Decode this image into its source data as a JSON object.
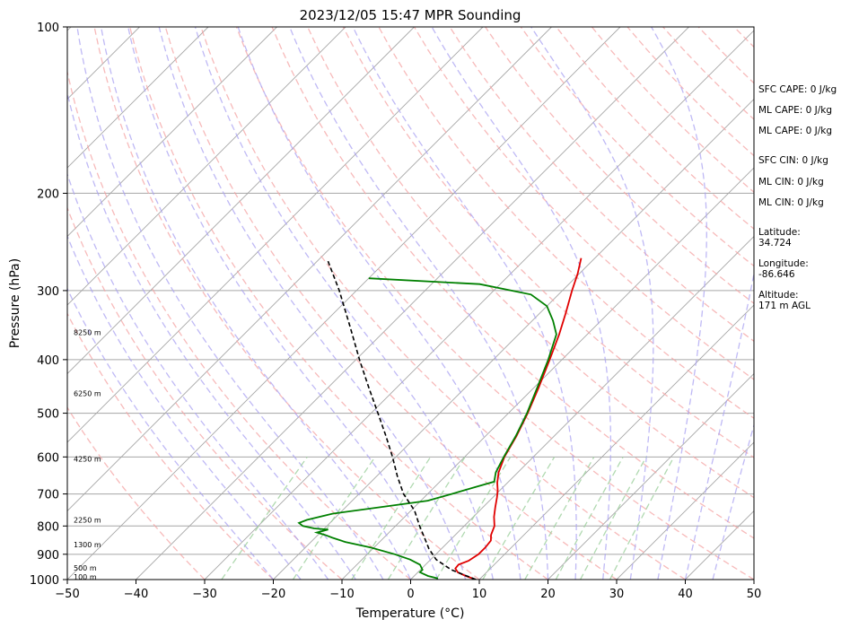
{
  "chart_data": {
    "type": "line",
    "title": "2023/12/05 15:47 MPR Sounding",
    "xlabel": "Temperature (°C)",
    "ylabel": "Pressure (hPa)",
    "xlim": [
      -50,
      50
    ],
    "ylim": [
      1000,
      100
    ],
    "y_scale": "log",
    "skew": "skew-T",
    "grid": true,
    "x_ticks": [
      -50,
      -40,
      -30,
      -20,
      -10,
      0,
      10,
      20,
      30,
      40,
      50
    ],
    "y_ticks": [
      1000,
      900,
      800,
      700,
      600,
      500,
      400,
      300,
      200,
      100
    ],
    "colors": {
      "temperature": "#e00000",
      "dewpoint": "#008000",
      "parcel": "#000000",
      "dry_adiabats": "#f4a3a3",
      "moist_adiabats": "#a9a1f2",
      "mixing_ratio": "#9ccf9c",
      "isotherms": "#a6a6a6"
    },
    "series": [
      {
        "name": "",
        "role": "temperature",
        "points": [
          {
            "p": 1000,
            "t": 9.5
          },
          {
            "p": 985,
            "t": 7.5
          },
          {
            "p": 970,
            "t": 5.8
          },
          {
            "p": 955,
            "t": 4.9
          },
          {
            "p": 940,
            "t": 4.8
          },
          {
            "p": 925,
            "t": 5.7
          },
          {
            "p": 900,
            "t": 6.2
          },
          {
            "p": 875,
            "t": 6.2
          },
          {
            "p": 850,
            "t": 6.0
          },
          {
            "p": 830,
            "t": 5.2
          },
          {
            "p": 800,
            "t": 4.4
          },
          {
            "p": 770,
            "t": 3.0
          },
          {
            "p": 740,
            "t": 1.8
          },
          {
            "p": 710,
            "t": 0.6
          },
          {
            "p": 690,
            "t": -0.3
          },
          {
            "p": 668,
            "t": -1.5
          },
          {
            "p": 640,
            "t": -2.8
          },
          {
            "p": 600,
            "t": -4.2
          },
          {
            "p": 550,
            "t": -5.5
          },
          {
            "p": 500,
            "t": -7.2
          },
          {
            "p": 450,
            "t": -9.3
          },
          {
            "p": 400,
            "t": -11.8
          },
          {
            "p": 360,
            "t": -14.1
          },
          {
            "p": 330,
            "t": -16.2
          },
          {
            "p": 300,
            "t": -18.6
          },
          {
            "p": 280,
            "t": -20.2
          },
          {
            "p": 262,
            "t": -22.0
          }
        ]
      },
      {
        "name": "",
        "role": "dewpoint",
        "points": [
          {
            "p": 995,
            "t": 3.8
          },
          {
            "p": 985,
            "t": 2.0
          },
          {
            "p": 970,
            "t": 0.3
          },
          {
            "p": 960,
            "t": 0.3
          },
          {
            "p": 940,
            "t": -0.8
          },
          {
            "p": 920,
            "t": -3.0
          },
          {
            "p": 900,
            "t": -6.0
          },
          {
            "p": 875,
            "t": -10.5
          },
          {
            "p": 855,
            "t": -15.0
          },
          {
            "p": 840,
            "t": -17.5
          },
          {
            "p": 830,
            "t": -19.0
          },
          {
            "p": 822,
            "t": -20.5
          },
          {
            "p": 812,
            "t": -19.3
          },
          {
            "p": 808,
            "t": -21.5
          },
          {
            "p": 800,
            "t": -23.5
          },
          {
            "p": 790,
            "t": -24.5
          },
          {
            "p": 780,
            "t": -23.8
          },
          {
            "p": 760,
            "t": -21.0
          },
          {
            "p": 740,
            "t": -15.0
          },
          {
            "p": 720,
            "t": -9.0
          },
          {
            "p": 700,
            "t": -6.5
          },
          {
            "p": 680,
            "t": -4.0
          },
          {
            "p": 665,
            "t": -2.1
          },
          {
            "p": 640,
            "t": -3.2
          },
          {
            "p": 600,
            "t": -4.3
          },
          {
            "p": 550,
            "t": -5.6
          },
          {
            "p": 500,
            "t": -7.3
          },
          {
            "p": 450,
            "t": -9.5
          },
          {
            "p": 400,
            "t": -12.0
          },
          {
            "p": 360,
            "t": -14.5
          },
          {
            "p": 340,
            "t": -17.0
          },
          {
            "p": 320,
            "t": -20.0
          },
          {
            "p": 305,
            "t": -24.0
          },
          {
            "p": 292,
            "t": -33.0
          },
          {
            "p": 285,
            "t": -50.0
          }
        ]
      },
      {
        "name": "",
        "role": "parcel",
        "points": [
          {
            "p": 1000,
            "t": 9.5
          },
          {
            "p": 960,
            "t": 4.5
          },
          {
            "p": 920,
            "t": 0.8
          },
          {
            "p": 880,
            "t": -1.8
          },
          {
            "p": 850,
            "t": -3.5
          },
          {
            "p": 800,
            "t": -6.5
          },
          {
            "p": 750,
            "t": -9.5
          },
          {
            "p": 700,
            "t": -13.5
          },
          {
            "p": 650,
            "t": -17.0
          },
          {
            "p": 600,
            "t": -20.5
          },
          {
            "p": 550,
            "t": -24.5
          },
          {
            "p": 500,
            "t": -29.0
          },
          {
            "p": 450,
            "t": -34.0
          },
          {
            "p": 400,
            "t": -39.5
          },
          {
            "p": 350,
            "t": -45.5
          },
          {
            "p": 300,
            "t": -52.5
          },
          {
            "p": 265,
            "t": -58.5
          }
        ]
      }
    ],
    "height_labels": [
      {
        "p": 357,
        "text": "8250 m"
      },
      {
        "p": 460,
        "text": "6250 m"
      },
      {
        "p": 605,
        "text": "4250 m"
      },
      {
        "p": 780,
        "text": "2250 m"
      },
      {
        "p": 865,
        "text": "1300 m"
      },
      {
        "p": 952,
        "text": "500 m"
      },
      {
        "p": 988,
        "text": "100 m"
      }
    ],
    "side_annotations": [
      {
        "key": "sfc_cape",
        "text": "SFC CAPE: 0 J/kg"
      },
      {
        "key": "ml_cape_1",
        "text": "ML CAPE: 0 J/kg"
      },
      {
        "key": "ml_cape_2",
        "text": "ML CAPE: 0 J/kg"
      },
      {
        "key": "sfc_cin",
        "text": "SFC CIN: 0 J/kg"
      },
      {
        "key": "ml_cin_1",
        "text": "ML CIN: 0 J/kg"
      },
      {
        "key": "ml_cin_2",
        "text": "ML CIN: 0 J/kg"
      },
      {
        "key": "latitude",
        "text": "Latitude:",
        "value": "34.724"
      },
      {
        "key": "longitude",
        "text": "Longitude:",
        "value": "-86.646"
      },
      {
        "key": "altitude",
        "text": "Altitude:",
        "value": "171 m AGL"
      }
    ]
  }
}
